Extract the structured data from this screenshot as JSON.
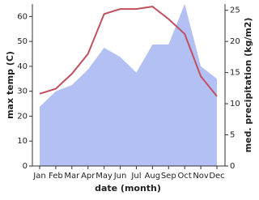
{
  "chart_data": {
    "type": "line",
    "x_label": "date (month)",
    "y_label": "max temp (C)",
    "y2_label": "med. precipitation (kg/m2)",
    "categories": [
      "Jan",
      "Feb",
      "Mar",
      "Apr",
      "May",
      "Jun",
      "Jul",
      "Aug",
      "Sep",
      "Oct",
      "Nov",
      "Dec"
    ],
    "series": [
      {
        "name": "med. precipitation",
        "color": "#b3c0f4",
        "axis": "y2",
        "fill": true,
        "values": [
          9.5,
          12,
          13,
          15.5,
          19,
          17.5,
          15,
          19.5,
          19.5,
          26,
          16,
          14
        ]
      },
      {
        "name": "max temp",
        "color": "#c0505e",
        "values": [
          29,
          31,
          37,
          45,
          61,
          63,
          63,
          64,
          59,
          53,
          36,
          28
        ]
      }
    ],
    "ylim": [
      0,
      65
    ],
    "yticks": [
      0,
      10,
      20,
      30,
      40,
      50,
      60
    ],
    "y2lim": [
      0,
      26
    ],
    "y2ticks": [
      0,
      5,
      10,
      15,
      20,
      25
    ]
  }
}
